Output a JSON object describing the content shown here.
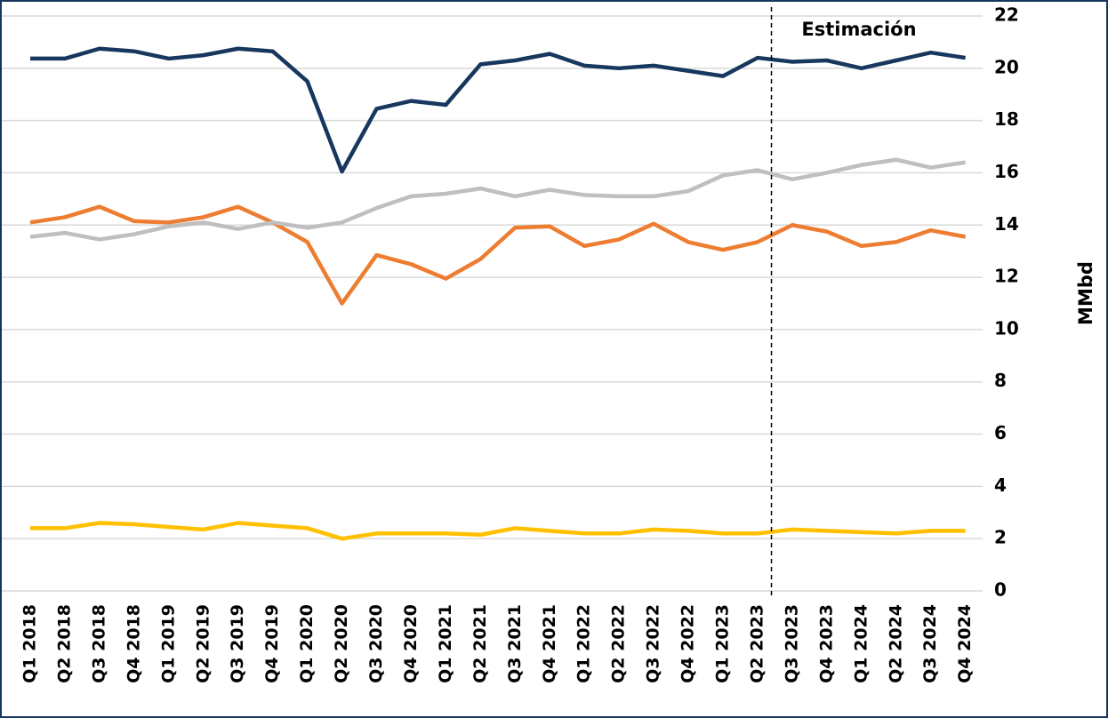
{
  "chart_data": {
    "type": "line",
    "y_label": "MMbd",
    "annotation": "Estimación",
    "categories": [
      "Q1 2018",
      "Q2 2018",
      "Q3 2018",
      "Q4 2018",
      "Q1 2019",
      "Q2 2019",
      "Q3 2019",
      "Q4 2019",
      "Q1 2020",
      "Q2 2020",
      "Q3 2020",
      "Q4 2020",
      "Q1 2021",
      "Q2 2021",
      "Q3 2021",
      "Q4 2021",
      "Q1 2022",
      "Q2 2022",
      "Q3 2022",
      "Q4 2022",
      "Q1 2023",
      "Q2 2023",
      "Q3 2023",
      "Q4 2023",
      "Q1 2024",
      "Q2 2024",
      "Q3 2024",
      "Q4 2024"
    ],
    "series": [
      {
        "color": "#17375e",
        "values": [
          20.37,
          20.37,
          20.75,
          20.65,
          20.37,
          20.5,
          20.75,
          20.65,
          19.5,
          16.05,
          18.45,
          18.75,
          18.6,
          20.15,
          20.3,
          20.55,
          20.1,
          20.0,
          20.1,
          19.9,
          19.7,
          20.4,
          20.25,
          20.3,
          20.0,
          20.3,
          20.6,
          20.4
        ]
      },
      {
        "color": "#ed7d31",
        "values": [
          14.1,
          14.3,
          14.7,
          14.15,
          14.1,
          14.3,
          14.7,
          14.1,
          13.35,
          11.0,
          12.85,
          12.5,
          11.95,
          12.7,
          13.9,
          13.95,
          13.2,
          13.45,
          14.05,
          13.35,
          13.05,
          13.35,
          14.0,
          13.75,
          13.2,
          13.35,
          13.8,
          13.55
        ]
      },
      {
        "color": "#bfbfbf",
        "values": [
          13.55,
          13.7,
          13.45,
          13.65,
          13.95,
          14.1,
          13.85,
          14.1,
          13.9,
          14.1,
          14.65,
          15.1,
          15.2,
          15.4,
          15.1,
          15.35,
          15.15,
          15.1,
          15.1,
          15.3,
          15.9,
          16.1,
          15.75,
          16.0,
          16.3,
          16.5,
          16.2,
          16.4
        ]
      },
      {
        "color": "#ffc000",
        "values": [
          2.4,
          2.4,
          2.6,
          2.55,
          2.45,
          2.35,
          2.6,
          2.5,
          2.4,
          2.0,
          2.2,
          2.2,
          2.2,
          2.15,
          2.4,
          2.3,
          2.2,
          2.2,
          2.35,
          2.3,
          2.2,
          2.2,
          2.35,
          2.3,
          2.25,
          2.2,
          2.3,
          2.3
        ]
      }
    ],
    "ylim": [
      0,
      22
    ],
    "yticks": [
      0,
      2,
      4,
      6,
      8,
      10,
      12,
      14,
      16,
      18,
      20,
      22
    ],
    "grid": true
  }
}
